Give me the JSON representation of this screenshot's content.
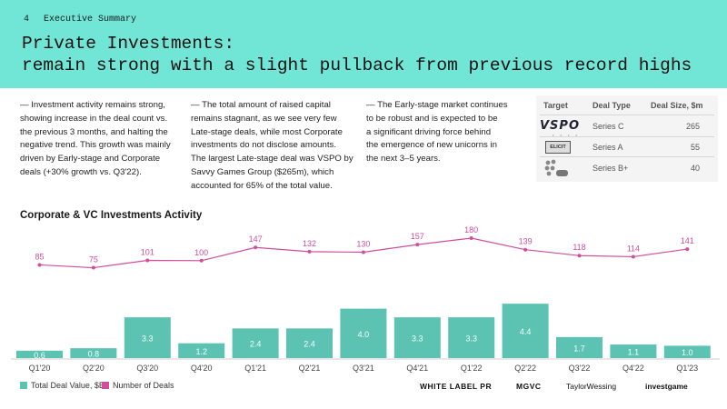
{
  "header": {
    "page_number": "4",
    "section": "Executive Summary",
    "title_line1": "Private Investments:",
    "title_line2": "remain strong with a slight pullback from previous record highs"
  },
  "paragraphs": {
    "p1_lines": [
      "— Investment activity remains strong,",
      "showing increase in the deal count vs.",
      "the previous 3 months, and halting the",
      "negative trend. This growth was mainly",
      "driven by Early-stage and Corporate",
      "deals (+30% growth vs. Q3'22)."
    ],
    "p2_lines": [
      "— The total amount of raised capital",
      "remains stagnant, as we see very few",
      "Late-stage deals, while most Corporate",
      "investments do not disclose amounts.",
      "The largest Late-stage deal was VSPO by",
      "Savvy Games Group ($265m), which",
      "accounted for 65% of the total value."
    ],
    "p3_lines": [
      "— The Early-stage market continues",
      "to be robust and is expected to be",
      "a significant driving force behind",
      "the emergence of new unicorns in",
      "the next 3–5 years."
    ]
  },
  "deal_table": {
    "headers": {
      "target": "Target",
      "type": "Deal Type",
      "size": "Deal Size, $m"
    },
    "logo_vspo": "VSPO",
    "logo_elicit": "ELICIT",
    "rows": [
      {
        "deal_type": "Series C",
        "deal_size": "265"
      },
      {
        "deal_type": "Series A",
        "deal_size": "55"
      },
      {
        "deal_type": "Series B+",
        "deal_size": "40"
      }
    ]
  },
  "chart_title": "Corporate & VC Investments Activity",
  "chart_data": {
    "type": "bar+line",
    "categories": [
      "Q1'20",
      "Q2'20",
      "Q3'20",
      "Q4'20",
      "Q1'21",
      "Q2'21",
      "Q3'21",
      "Q4'21",
      "Q1'22",
      "Q2'22",
      "Q3'22",
      "Q4'22",
      "Q1'23"
    ],
    "series": [
      {
        "name": "Total Deal Value, $B",
        "type": "bar",
        "color": "#5cc3b3",
        "labels": [
          "0.6",
          "0.8",
          "3.3",
          "1.2",
          "2.4",
          "2.4",
          "4.0",
          "3.3",
          "3.3",
          "4.4",
          "1.7",
          "1.1",
          "1.0"
        ],
        "values": [
          0.6,
          0.8,
          3.3,
          1.2,
          2.4,
          2.4,
          4.0,
          3.3,
          3.3,
          4.4,
          1.7,
          1.1,
          1.0
        ]
      },
      {
        "name": "Number of Deals",
        "type": "line",
        "color": "#d04e9c",
        "values": [
          85,
          75,
          101,
          100,
          147,
          132,
          130,
          157,
          180,
          139,
          118,
          114,
          141
        ]
      }
    ],
    "legend_position": "bottom-left",
    "grid": false
  },
  "sponsors": [
    "WHITE LABEL PR",
    "MGVC",
    "TaylorWessing",
    "investgame"
  ]
}
